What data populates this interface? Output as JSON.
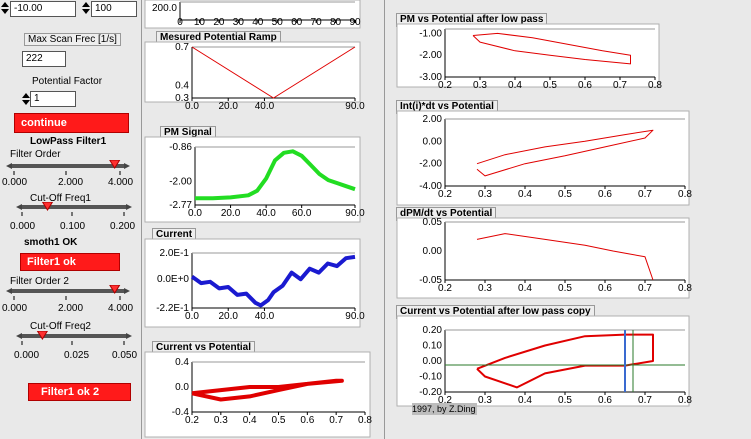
{
  "top_inputs": {
    "left_value": "-10.00",
    "right_value": "100"
  },
  "max_scan": {
    "label": "Max Scan Frec [1/s]",
    "value": "222"
  },
  "potential_factor": {
    "label": "Potential Factor",
    "value": "1"
  },
  "continue_label": "continue",
  "lowpass1_label": "LowPass Filter1",
  "filter_order": {
    "label": "Filter Order",
    "ticks": [
      "0.000",
      "2.000",
      "4.000"
    ],
    "value": 3.8,
    "min": 0,
    "max": 4
  },
  "cutoff1": {
    "label": "Cut-Off Freq1",
    "ticks": [
      "0.000",
      "0.100",
      "0.200"
    ],
    "value": 0.05,
    "min": 0,
    "max": 0.2
  },
  "smoth1_label": "smoth1 OK",
  "filter1_ok_label": "Filter1 ok",
  "filter_order2": {
    "label": "Filter Order 2",
    "ticks": [
      "0.000",
      "2.000",
      "4.000"
    ],
    "value": 3.8,
    "min": 0,
    "max": 4
  },
  "cutoff2": {
    "label": "Cut-Off Freq2",
    "ticks": [
      "0.000",
      "0.025",
      "0.050"
    ],
    "value": 0.01,
    "min": 0,
    "max": 0.05
  },
  "filter1_ok2_label": "Filter1 ok 2",
  "footer_text": "1997, by Z.Ding",
  "colors": {
    "red": "#ff1a1a",
    "green": "#22dd22",
    "blue": "#1a1ad0",
    "plot_red": "#e00000"
  },
  "chart_data": [
    {
      "id": "top-axis",
      "type": "line",
      "title": "",
      "x_ticks": [
        "0",
        "10",
        "20",
        "30",
        "40",
        "50",
        "60",
        "70",
        "80",
        "90"
      ],
      "y_ticks": [
        "200.0"
      ]
    },
    {
      "id": "ramp",
      "type": "line",
      "title": "Mesured Potential Ramp",
      "x": [
        0,
        45,
        90
      ],
      "y": [
        0.7,
        0.3,
        0.7
      ],
      "x_ticks": [
        "0.0",
        "20.0",
        "40.0",
        "90.0"
      ],
      "y_ticks": [
        "0.7",
        "0.4",
        "0.3"
      ],
      "xlim": [
        0,
        90
      ],
      "ylim": [
        0.3,
        0.7
      ]
    },
    {
      "id": "pm",
      "type": "line",
      "title": "PM Signal",
      "x": [
        0,
        10,
        20,
        30,
        35,
        40,
        45,
        50,
        55,
        60,
        65,
        70,
        75,
        80,
        85,
        90
      ],
      "y": [
        -2.55,
        -2.55,
        -2.52,
        -2.45,
        -2.3,
        -1.9,
        -1.3,
        -1.05,
        -1.0,
        -1.15,
        -1.45,
        -1.75,
        -1.95,
        -2.05,
        -2.15,
        -2.25
      ],
      "x_ticks": [
        "0.0",
        "20.0",
        "40.0",
        "60.0",
        "90.0"
      ],
      "y_ticks": [
        "-0.86",
        "-2.00",
        "-2.77"
      ],
      "xlim": [
        0,
        90
      ],
      "ylim": [
        -2.77,
        -0.86
      ]
    },
    {
      "id": "current",
      "type": "line",
      "title": "Current",
      "x": [
        0,
        5,
        10,
        15,
        20,
        25,
        30,
        35,
        38,
        42,
        45,
        50,
        55,
        60,
        65,
        70,
        75,
        80,
        85,
        90
      ],
      "y": [
        0.02,
        -0.03,
        -0.02,
        -0.07,
        -0.06,
        -0.12,
        -0.11,
        -0.18,
        -0.2,
        -0.16,
        -0.1,
        -0.05,
        0.05,
        0.0,
        0.08,
        0.05,
        0.12,
        0.1,
        0.16,
        0.17
      ],
      "x_ticks": [
        "0.0",
        "20.0",
        "40.0",
        "90.0"
      ],
      "y_ticks": [
        "2.0E-1",
        "0.0E+0",
        "-2.2E-1"
      ],
      "xlim": [
        0,
        90
      ],
      "ylim": [
        -0.22,
        0.2
      ]
    },
    {
      "id": "cvp",
      "type": "line",
      "title": "Current vs Potential",
      "x": [
        0.2,
        0.3,
        0.4,
        0.5,
        0.6,
        0.7,
        0.72,
        0.6,
        0.5,
        0.4,
        0.3,
        0.2
      ],
      "y": [
        -0.1,
        -0.2,
        -0.15,
        -0.05,
        0.05,
        0.1,
        0.1,
        0.05,
        0.0,
        0.0,
        -0.05,
        -0.1
      ],
      "x_ticks": [
        "0.2",
        "0.3",
        "0.4",
        "0.5",
        "0.6",
        "0.7",
        "0.8"
      ],
      "y_ticks": [
        "0.4",
        "0.0",
        "-0.4"
      ],
      "xlim": [
        0.2,
        0.8
      ],
      "ylim": [
        -0.4,
        0.4
      ]
    },
    {
      "id": "pm-lowpass",
      "type": "line",
      "title": "PM vs Potential after low pass",
      "x": [
        0.28,
        0.35,
        0.45,
        0.55,
        0.65,
        0.73,
        0.73,
        0.6,
        0.5,
        0.4,
        0.3,
        0.28
      ],
      "y": [
        -1.1,
        -1.0,
        -1.2,
        -1.5,
        -1.8,
        -2.0,
        -2.4,
        -2.2,
        -2.0,
        -1.8,
        -1.4,
        -1.1
      ],
      "x_ticks": [
        "0.2",
        "0.3",
        "0.4",
        "0.5",
        "0.6",
        "0.7",
        "0.8"
      ],
      "y_ticks": [
        "-1.00",
        "-2.00",
        "-3.00"
      ],
      "xlim": [
        0.2,
        0.8
      ],
      "ylim": [
        -3.0,
        -0.8
      ]
    },
    {
      "id": "int",
      "type": "line",
      "title": "Int(i)*dt vs Potential",
      "x": [
        0.28,
        0.35,
        0.45,
        0.55,
        0.65,
        0.72,
        0.7,
        0.6,
        0.5,
        0.4,
        0.3,
        0.28
      ],
      "y": [
        -2.0,
        -1.2,
        -0.5,
        0.0,
        0.6,
        1.0,
        0.3,
        -0.5,
        -1.3,
        -2.0,
        -3.1,
        -2.5
      ],
      "x_ticks": [
        "0.2",
        "0.3",
        "0.4",
        "0.5",
        "0.6",
        "0.7",
        "0.8"
      ],
      "y_ticks": [
        "2.00",
        "0.00",
        "-2.00",
        "-4.00"
      ],
      "xlim": [
        0.2,
        0.8
      ],
      "ylim": [
        -4.0,
        2.0
      ]
    },
    {
      "id": "dpm",
      "type": "line",
      "title": "dPM/dt vs Potential",
      "x": [
        0.28,
        0.35,
        0.45,
        0.55,
        0.62,
        0.7,
        0.72
      ],
      "y": [
        0.02,
        0.03,
        0.02,
        0.01,
        0.0,
        -0.01,
        -0.05
      ],
      "x_ticks": [
        "0.2",
        "0.3",
        "0.4",
        "0.5",
        "0.6",
        "0.7",
        "0.8"
      ],
      "y_ticks": [
        "0.05",
        "0.00",
        "-0.05"
      ],
      "xlim": [
        0.2,
        0.8
      ],
      "ylim": [
        -0.05,
        0.05
      ]
    },
    {
      "id": "cvp-lowpass",
      "type": "line",
      "title": "Current vs Potential after low pass copy",
      "x": [
        0.28,
        0.35,
        0.45,
        0.55,
        0.65,
        0.72,
        0.72,
        0.65,
        0.55,
        0.45,
        0.38,
        0.3,
        0.28
      ],
      "y": [
        -0.05,
        0.02,
        0.1,
        0.16,
        0.17,
        0.17,
        0.0,
        -0.03,
        -0.03,
        -0.08,
        -0.17,
        -0.1,
        -0.05
      ],
      "x_ticks": [
        "0.2",
        "0.3",
        "0.4",
        "0.5",
        "0.6",
        "0.7",
        "0.8"
      ],
      "y_ticks": [
        "0.20",
        "0.10",
        "0.00",
        "-0.10",
        "-0.20"
      ],
      "xlim": [
        0.2,
        0.8
      ],
      "ylim": [
        -0.2,
        0.2
      ]
    }
  ]
}
